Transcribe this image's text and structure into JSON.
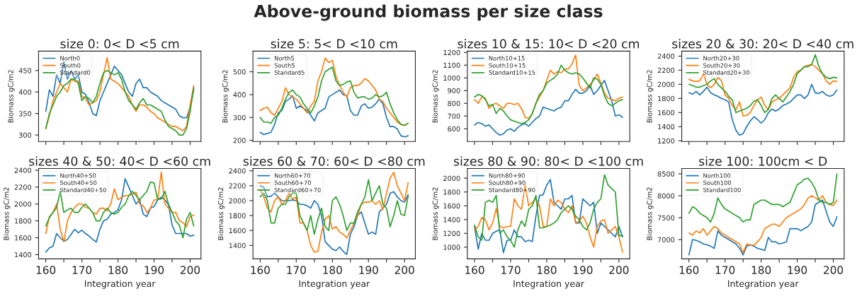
{
  "chart_data": [
    {
      "type": "line",
      "title": "size 0: 0< D <5 cm",
      "ylabel": "Biomass gC/m2",
      "annotations": [
        "Above-ground biomass per size class"
      ],
      "legend": "top left",
      "grid": false,
      "tick_labels": "y",
      "xlim": [
        158,
        203
      ],
      "xticks": [
        160,
        {
          "value": 165,
          "label": null
        },
        170,
        {
          "value": 175,
          "label": null
        },
        180,
        {
          "value": 185,
          "label": null
        },
        190,
        {
          "value": 195,
          "label": null
        },
        200
      ],
      "ylim": [
        285,
        495
      ],
      "yticks": [
        300,
        350,
        400,
        450
      ],
      "x": [
        160,
        161,
        162,
        163,
        164,
        165,
        166,
        167,
        168,
        169,
        170,
        171,
        172,
        173,
        174,
        175,
        176,
        177,
        178,
        179,
        180,
        181,
        182,
        183,
        184,
        185,
        186,
        187,
        188,
        189,
        190,
        191,
        192,
        193,
        194,
        195,
        196,
        197,
        198,
        199,
        200,
        201
      ],
      "series": [
        {
          "name": "North0",
          "color": "#1f77b4",
          "values": [
            355,
            405,
            390,
            440,
            420,
            470,
            430,
            450,
            430,
            440,
            400,
            395,
            375,
            350,
            345,
            380,
            400,
            420,
            440,
            460,
            450,
            440,
            420,
            400,
            390,
            420,
            430,
            410,
            410,
            400,
            395,
            390,
            380,
            375,
            370,
            365,
            360,
            345,
            340,
            340,
            365,
            405
          ]
        },
        {
          "name": "South0",
          "color": "#ff7f0e",
          "values": [
            315,
            345,
            380,
            400,
            420,
            410,
            400,
            430,
            425,
            425,
            390,
            385,
            370,
            375,
            380,
            400,
            440,
            480,
            430,
            425,
            420,
            410,
            400,
            390,
            370,
            355,
            370,
            370,
            365,
            355,
            350,
            340,
            335,
            330,
            325,
            320,
            320,
            315,
            310,
            320,
            370,
            415
          ]
        },
        {
          "name": "Standard0",
          "color": "#2ca02c",
          "values": [
            315,
            350,
            370,
            390,
            400,
            415,
            420,
            430,
            430,
            420,
            380,
            390,
            385,
            375,
            390,
            420,
            445,
            450,
            445,
            440,
            445,
            430,
            400,
            380,
            370,
            360,
            375,
            385,
            370,
            370,
            365,
            360,
            355,
            335,
            320,
            315,
            310,
            300,
            300,
            315,
            355,
            410
          ]
        }
      ]
    },
    {
      "type": "line",
      "title": "size 5: 5< D <10 cm",
      "ylabel": "Biomass gC/m2",
      "legend": "top left",
      "grid": false,
      "tick_labels": "y",
      "xlim": [
        158,
        203
      ],
      "xticks": [
        160,
        {
          "value": 165,
          "label": null
        },
        170,
        {
          "value": 175,
          "label": null
        },
        180,
        {
          "value": 185,
          "label": null
        },
        190,
        {
          "value": 195,
          "label": null
        },
        200
      ],
      "ylim": [
        195,
        590
      ],
      "yticks": [
        200,
        300,
        400,
        500
      ],
      "x": [
        160,
        161,
        162,
        163,
        164,
        165,
        166,
        167,
        168,
        169,
        170,
        171,
        172,
        173,
        174,
        175,
        176,
        177,
        178,
        179,
        180,
        181,
        182,
        183,
        184,
        185,
        186,
        187,
        188,
        189,
        190,
        191,
        192,
        193,
        194,
        195,
        196,
        197,
        198,
        199,
        200,
        201
      ],
      "series": [
        {
          "name": "North5",
          "color": "#1f77b4",
          "values": [
            235,
            225,
            230,
            235,
            270,
            320,
            330,
            370,
            380,
            395,
            340,
            350,
            340,
            330,
            310,
            285,
            320,
            330,
            340,
            390,
            400,
            410,
            420,
            400,
            395,
            330,
            310,
            310,
            350,
            360,
            340,
            345,
            360,
            380,
            360,
            300,
            260,
            260,
            250,
            220,
            215,
            220
          ]
        },
        {
          "name": "South5",
          "color": "#ff7f0e",
          "values": [
            330,
            340,
            345,
            320,
            310,
            340,
            370,
            430,
            400,
            390,
            380,
            360,
            340,
            320,
            350,
            370,
            460,
            500,
            560,
            540,
            550,
            480,
            440,
            410,
            390,
            430,
            440,
            440,
            450,
            470,
            460,
            440,
            420,
            380,
            370,
            340,
            320,
            300,
            280,
            270,
            265,
            275
          ]
        },
        {
          "name": "Standard5",
          "color": "#2ca02c",
          "values": [
            300,
            280,
            280,
            275,
            300,
            310,
            340,
            380,
            410,
            420,
            400,
            390,
            360,
            340,
            320,
            350,
            390,
            460,
            500,
            510,
            520,
            460,
            440,
            445,
            455,
            460,
            410,
            385,
            390,
            390,
            380,
            385,
            400,
            390,
            395,
            410,
            360,
            320,
            290,
            270,
            265,
            275
          ]
        }
      ]
    },
    {
      "type": "line",
      "title": "sizes 10 & 15: 10< D <20 cm",
      "ylabel": "Biomass gC/m2",
      "legend": "top left",
      "grid": false,
      "tick_labels": "y",
      "xlim": [
        158,
        203
      ],
      "xticks": [
        160,
        {
          "value": 165,
          "label": null
        },
        170,
        {
          "value": 175,
          "label": null
        },
        180,
        {
          "value": 185,
          "label": null
        },
        190,
        {
          "value": 195,
          "label": null
        },
        200
      ],
      "ylim": [
        500,
        1210
      ],
      "yticks": [
        600,
        700,
        800,
        900,
        1000,
        1100,
        1200
      ],
      "x": [
        160,
        161,
        162,
        163,
        164,
        165,
        166,
        167,
        168,
        169,
        170,
        171,
        172,
        173,
        174,
        175,
        176,
        177,
        178,
        179,
        180,
        181,
        182,
        183,
        184,
        185,
        186,
        187,
        188,
        189,
        190,
        191,
        192,
        193,
        194,
        195,
        196,
        197,
        198,
        199,
        200,
        201
      ],
      "series": [
        {
          "name": "North10+15",
          "color": "#1f77b4",
          "values": [
            630,
            650,
            640,
            620,
            630,
            600,
            570,
            550,
            560,
            590,
            600,
            580,
            610,
            630,
            640,
            620,
            650,
            680,
            700,
            770,
            760,
            750,
            740,
            760,
            770,
            820,
            820,
            870,
            910,
            880,
            880,
            900,
            940,
            870,
            900,
            940,
            980,
            900,
            820,
            700,
            710,
            690
          ]
        },
        {
          "name": "South10+15",
          "color": "#ff7f0e",
          "values": [
            830,
            800,
            850,
            840,
            760,
            790,
            800,
            780,
            760,
            800,
            800,
            790,
            800,
            760,
            690,
            680,
            720,
            800,
            850,
            900,
            980,
            1060,
            1030,
            1050,
            1040,
            1070,
            1070,
            1110,
            1180,
            940,
            900,
            920,
            950,
            980,
            1030,
            960,
            880,
            840,
            830,
            820,
            840,
            850
          ]
        },
        {
          "name": "Standard10+15",
          "color": "#2ca02c",
          "values": [
            850,
            870,
            860,
            830,
            780,
            790,
            720,
            760,
            740,
            700,
            670,
            660,
            650,
            640,
            650,
            670,
            720,
            800,
            870,
            900,
            960,
            980,
            1000,
            1030,
            1100,
            1060,
            1040,
            1030,
            1040,
            1030,
            1000,
            960,
            920,
            1000,
            990,
            950,
            860,
            800,
            780,
            800,
            820,
            830
          ]
        }
      ]
    },
    {
      "type": "line",
      "title": "sizes 20 & 30: 20< D <40 cm",
      "ylabel": "Biomass gC/m2",
      "legend": "top left",
      "grid": false,
      "tick_labels": "y",
      "xlim": [
        158,
        203
      ],
      "xticks": [
        160,
        {
          "value": 165,
          "label": null
        },
        170,
        {
          "value": 175,
          "label": null
        },
        180,
        {
          "value": 185,
          "label": null
        },
        190,
        {
          "value": 195,
          "label": null
        },
        200
      ],
      "ylim": [
        1190,
        2470
      ],
      "yticks": [
        1200,
        1400,
        1600,
        1800,
        2000,
        2200,
        2400
      ],
      "x": [
        160,
        161,
        162,
        163,
        164,
        165,
        166,
        167,
        168,
        169,
        170,
        171,
        172,
        173,
        174,
        175,
        176,
        177,
        178,
        179,
        180,
        181,
        182,
        183,
        184,
        185,
        186,
        187,
        188,
        189,
        190,
        191,
        192,
        193,
        194,
        195,
        196,
        197,
        198,
        199,
        200,
        201
      ],
      "series": [
        {
          "name": "North20+30",
          "color": "#1f77b4",
          "values": [
            1880,
            1860,
            1900,
            1850,
            1900,
            1960,
            1880,
            1850,
            1830,
            1800,
            1780,
            1750,
            1500,
            1350,
            1280,
            1300,
            1400,
            1480,
            1540,
            1500,
            1450,
            1500,
            1600,
            1650,
            1620,
            1650,
            1700,
            1720,
            1750,
            1800,
            1850,
            1850,
            1800,
            1850,
            2000,
            1880,
            1870,
            1900,
            1850,
            1830,
            1850,
            1920
          ]
        },
        {
          "name": "South20+30",
          "color": "#ff7f0e",
          "values": [
            2070,
            2050,
            2040,
            2050,
            2150,
            2000,
            1950,
            2000,
            2100,
            2050,
            1850,
            1800,
            1700,
            1640,
            1750,
            1550,
            1560,
            1600,
            1700,
            1780,
            1820,
            1700,
            1640,
            1750,
            1780,
            1800,
            1850,
            1900,
            1950,
            2100,
            2180,
            2200,
            2250,
            2270,
            2280,
            2250,
            2200,
            2150,
            2050,
            2000,
            2050,
            2040
          ]
        },
        {
          "name": "Standard20+30",
          "color": "#2ca02c",
          "values": [
            2000,
            1980,
            1960,
            1960,
            1980,
            2000,
            2050,
            2080,
            2000,
            1950,
            1900,
            1830,
            1780,
            1600,
            1620,
            1640,
            1660,
            1700,
            1760,
            1780,
            1700,
            1600,
            1650,
            1800,
            1850,
            1800,
            1750,
            1820,
            1900,
            2000,
            2150,
            2200,
            2250,
            2250,
            2280,
            2420,
            2250,
            2150,
            2100,
            2080,
            2100,
            2090
          ]
        }
      ]
    },
    {
      "type": "line",
      "title": "sizes 40 & 50: 40< D <60 cm",
      "xlabel": "Integration year",
      "ylabel": "Biomass gC/m2",
      "legend": "top left",
      "grid": false,
      "xlim": [
        158,
        203
      ],
      "xticks": [
        160,
        {
          "value": 165,
          "label": null
        },
        170,
        {
          "value": 175,
          "label": null
        },
        180,
        {
          "value": 185,
          "label": null
        },
        190,
        {
          "value": 195,
          "label": null
        },
        200
      ],
      "ylim": [
        1350,
        2420
      ],
      "yticks": [
        1400,
        1600,
        1800,
        2000,
        2200,
        2400
      ],
      "x": [
        160,
        161,
        162,
        163,
        164,
        165,
        166,
        167,
        168,
        169,
        170,
        171,
        172,
        173,
        174,
        175,
        176,
        177,
        178,
        179,
        180,
        181,
        182,
        183,
        184,
        185,
        186,
        187,
        188,
        189,
        190,
        191,
        192,
        193,
        194,
        195,
        196,
        197,
        198,
        199,
        200,
        201
      ],
      "series": [
        {
          "name": "North40+50",
          "color": "#1f77b4",
          "values": [
            1430,
            1480,
            1500,
            1650,
            1600,
            1560,
            1580,
            1640,
            1700,
            1660,
            1690,
            1650,
            1620,
            1580,
            1550,
            1700,
            1800,
            1820,
            1880,
            1900,
            1930,
            2050,
            2300,
            2200,
            2100,
            2000,
            2050,
            1880,
            1850,
            1950,
            1970,
            2050,
            2080,
            2050,
            1990,
            1750,
            1650,
            1650,
            1650,
            1650,
            1620,
            1630
          ]
        },
        {
          "name": "South40+50",
          "color": "#ff7f0e",
          "values": [
            1650,
            1850,
            1900,
            2000,
            1700,
            1550,
            1800,
            1900,
            1960,
            2000,
            2000,
            1960,
            1950,
            1900,
            1880,
            1950,
            1950,
            1920,
            2000,
            2180,
            2050,
            2080,
            2100,
            2100,
            2120,
            2140,
            2000,
            1980,
            1900,
            1950,
            2050,
            2050,
            2380,
            2000,
            1950,
            1900,
            1900,
            1800,
            1780,
            1730,
            1850,
            1870
          ]
        },
        {
          "name": "Standard40+50",
          "color": "#2ca02c",
          "values": [
            1740,
            1840,
            1900,
            1960,
            2150,
            1900,
            1930,
            1950,
            1900,
            1900,
            1960,
            2000,
            1950,
            1900,
            1800,
            1800,
            1900,
            1950,
            1900,
            1880,
            1900,
            1960,
            2000,
            2100,
            2150,
            2100,
            2050,
            2100,
            2150,
            2260,
            2250,
            2050,
            2060,
            2150,
            2000,
            1900,
            1800,
            1750,
            1600,
            1820,
            1900,
            1740
          ]
        }
      ]
    },
    {
      "type": "line",
      "title": "sizes 60 & 70: 60< D <80 cm",
      "xlabel": "Integration year",
      "ylabel": "Biomass gC/m2",
      "legend": "top left",
      "grid": false,
      "xlim": [
        158,
        203
      ],
      "xticks": [
        160,
        {
          "value": 165,
          "label": null
        },
        170,
        {
          "value": 175,
          "label": null
        },
        180,
        {
          "value": 185,
          "label": null
        },
        190,
        {
          "value": 195,
          "label": null
        },
        200
      ],
      "ylim": [
        1220,
        2430
      ],
      "yticks": [
        1400,
        1600,
        1800,
        2000,
        2200,
        2400
      ],
      "x": [
        160,
        161,
        162,
        163,
        164,
        165,
        166,
        167,
        168,
        169,
        170,
        171,
        172,
        173,
        174,
        175,
        176,
        177,
        178,
        179,
        180,
        181,
        182,
        183,
        184,
        185,
        186,
        187,
        188,
        189,
        190,
        191,
        192,
        193,
        194,
        195,
        196,
        197,
        198,
        199,
        200,
        201
      ],
      "series": [
        {
          "name": "North60+70",
          "color": "#1f77b4",
          "values": [
            2200,
            2180,
            2050,
            2060,
            2100,
            2050,
            2000,
            2000,
            2000,
            2010,
            2000,
            1950,
            1950,
            1930,
            1900,
            2000,
            1950,
            1800,
            1450,
            1400,
            1350,
            1330,
            1380,
            1320,
            1280,
            1550,
            1650,
            1800,
            1850,
            1700,
            1550,
            1580,
            1550,
            1850,
            1900,
            1950,
            2100,
            2120,
            2050,
            2000,
            1980,
            2080
          ]
        },
        {
          "name": "South60+70",
          "color": "#ff7f0e",
          "values": [
            2150,
            2050,
            1900,
            1850,
            2000,
            2050,
            1950,
            2000,
            2100,
            2020,
            2050,
            1700,
            1700,
            1600,
            1400,
            1310,
            1320,
            1580,
            1750,
            1800,
            1620,
            1650,
            1580,
            1550,
            1500,
            1600,
            1700,
            1800,
            1950,
            1980,
            1980,
            2000,
            1950,
            2000,
            1880,
            2100,
            2300,
            2380,
            2200,
            2100,
            2000,
            2240
          ]
        },
        {
          "name": "Standard60+70",
          "color": "#2ca02c",
          "values": [
            2050,
            2100,
            2000,
            1700,
            1700,
            1900,
            1950,
            1950,
            2050,
            2100,
            2100,
            1800,
            1700,
            1600,
            1800,
            1550,
            1750,
            1900,
            1650,
            1600,
            2000,
            2050,
            1950,
            1800,
            1600,
            1700,
            1700,
            1850,
            1950,
            2050,
            2280,
            2000,
            2100,
            2200,
            1950,
            1900,
            1650,
            1800,
            2000,
            1820,
            1800,
            2060
          ]
        }
      ]
    },
    {
      "type": "line",
      "title": "sizes 80 & 90: 80< D <100 cm",
      "xlabel": "Integration year",
      "ylabel": "Biomass gC/m2",
      "legend": "top left",
      "grid": false,
      "xlim": [
        158,
        203
      ],
      "xticks": [
        160,
        {
          "value": 165,
          "label": null
        },
        170,
        {
          "value": 175,
          "label": null
        },
        180,
        {
          "value": 185,
          "label": null
        },
        190,
        {
          "value": 195,
          "label": null
        },
        200
      ],
      "ylim": [
        830,
        2140
      ],
      "yticks": [
        1000,
        1200,
        1400,
        1600,
        1800,
        2000
      ],
      "x": [
        160,
        161,
        162,
        163,
        164,
        165,
        166,
        167,
        168,
        169,
        170,
        171,
        172,
        173,
        174,
        175,
        176,
        177,
        178,
        179,
        180,
        181,
        182,
        183,
        184,
        185,
        186,
        187,
        188,
        189,
        190,
        191,
        192,
        193,
        194,
        195,
        196,
        197,
        198,
        199,
        200,
        201
      ],
      "series": [
        {
          "name": "North80+90",
          "color": "#1f77b4",
          "values": [
            1300,
            970,
            1200,
            1100,
            1100,
            1200,
            1230,
            1250,
            920,
            1100,
            1100,
            1250,
            1150,
            1150,
            1080,
            1100,
            1080,
            1450,
            1750,
            1760,
            1900,
            1980,
            1650,
            1600,
            1550,
            1700,
            1700,
            1750,
            1350,
            1350,
            1700,
            1650,
            1600,
            1650,
            1200,
            1350,
            1300,
            1250,
            1200,
            1150,
            1300,
            1150
          ]
        },
        {
          "name": "South80+90",
          "color": "#ff7f0e",
          "values": [
            1250,
            1300,
            1430,
            1400,
            1250,
            1350,
            1560,
            1300,
            1280,
            1300,
            1300,
            1700,
            1600,
            1550,
            1900,
            1600,
            1650,
            1700,
            1600,
            1300,
            1300,
            1700,
            1600,
            1680,
            1650,
            1550,
            1500,
            1600,
            1350,
            1380,
            1450,
            1350,
            1150,
            1000,
            1300,
            1380,
            1400,
            1200,
            1250,
            1300,
            1150,
            930
          ]
        },
        {
          "name": "Standard80+90",
          "color": "#2ca02c",
          "values": [
            1320,
            1150,
            1100,
            1650,
            1680,
            1650,
            1750,
            1200,
            1250,
            1150,
            1100,
            1000,
            1250,
            1380,
            1300,
            1550,
            1600,
            1750,
            1280,
            1280,
            1300,
            1320,
            1350,
            1400,
            1500,
            1550,
            1600,
            1550,
            1450,
            1400,
            1300,
            1250,
            1350,
            1550,
            1650,
            1700,
            2050,
            1900,
            1850,
            1800,
            1170,
            1160
          ]
        }
      ]
    },
    {
      "type": "line",
      "title": "size 100: 100cm < D",
      "xlabel": "Integration year",
      "ylabel": "Biomass gC/m2",
      "legend": "top left",
      "grid": false,
      "xlim": [
        158,
        203
      ],
      "xticks": [
        160,
        {
          "value": 165,
          "label": null
        },
        170,
        {
          "value": 175,
          "label": null
        },
        180,
        {
          "value": 185,
          "label": null
        },
        190,
        {
          "value": 195,
          "label": null
        },
        200
      ],
      "ylim": [
        6560,
        8620
      ],
      "yticks": [
        7000,
        7500,
        8000,
        8500
      ],
      "x": [
        160,
        161,
        162,
        163,
        164,
        165,
        166,
        167,
        168,
        169,
        170,
        171,
        172,
        173,
        174,
        175,
        176,
        177,
        178,
        179,
        180,
        181,
        182,
        183,
        184,
        185,
        186,
        187,
        188,
        189,
        190,
        191,
        192,
        193,
        194,
        195,
        196,
        197,
        198,
        199,
        200,
        201
      ],
      "series": [
        {
          "name": "North100",
          "color": "#1f77b4",
          "values": [
            6650,
            7000,
            6980,
            6950,
            6900,
            6880,
            6850,
            6800,
            7200,
            7100,
            7050,
            7000,
            6950,
            6900,
            6800,
            6650,
            6850,
            6880,
            6850,
            6800,
            6780,
            6750,
            7050,
            6950,
            6950,
            6900,
            6920,
            6950,
            7250,
            7250,
            7250,
            7200,
            7250,
            7300,
            7400,
            7800,
            7850,
            7900,
            7650,
            7400,
            7300,
            7520
          ]
        },
        {
          "name": "South100",
          "color": "#ff7f0e",
          "values": [
            7150,
            7100,
            7200,
            7150,
            7250,
            7100,
            7200,
            7300,
            7250,
            7150,
            7100,
            7050,
            7000,
            6950,
            6900,
            6700,
            6900,
            6880,
            6870,
            6950,
            7050,
            7250,
            7300,
            7350,
            7350,
            7300,
            7400,
            7500,
            7550,
            7600,
            7650,
            7700,
            7800,
            7950,
            8000,
            7950,
            7900,
            8000,
            7850,
            7800,
            7780,
            7900
          ]
        },
        {
          "name": "Standard100",
          "color": "#2ca02c",
          "values": [
            7600,
            7750,
            7700,
            7600,
            7550,
            7500,
            7400,
            7600,
            7950,
            7800,
            7700,
            7650,
            7600,
            7550,
            7500,
            7400,
            7450,
            7450,
            7800,
            7850,
            7900,
            7900,
            7850,
            7800,
            7800,
            7800,
            7750,
            7800,
            7850,
            8050,
            8250,
            8300,
            8380,
            8400,
            8300,
            8150,
            7900,
            7850,
            7850,
            7800,
            7850,
            8500
          ]
        }
      ]
    }
  ]
}
